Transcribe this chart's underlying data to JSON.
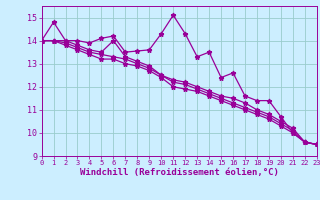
{
  "series": [
    {
      "x": [
        0,
        1,
        2,
        3,
        4,
        5,
        6,
        7,
        8,
        9,
        10,
        11,
        12,
        13,
        14,
        15,
        16,
        17,
        18,
        19,
        20,
        21,
        22,
        23
      ],
      "y": [
        14.0,
        14.8,
        14.0,
        14.0,
        13.9,
        14.1,
        14.2,
        13.5,
        13.55,
        13.6,
        14.3,
        15.1,
        14.3,
        13.3,
        13.5,
        12.4,
        12.6,
        11.6,
        11.4,
        11.4,
        10.7,
        10.0,
        9.6,
        9.5
      ]
    },
    {
      "x": [
        0,
        1,
        2,
        3,
        4,
        5,
        6,
        7,
        8,
        9,
        10,
        11,
        12,
        13,
        14,
        15,
        16,
        17,
        18,
        19,
        20,
        21,
        22,
        23
      ],
      "y": [
        14.0,
        14.0,
        14.0,
        13.8,
        13.6,
        13.5,
        14.0,
        13.3,
        13.1,
        12.9,
        12.5,
        12.3,
        12.2,
        12.0,
        11.8,
        11.6,
        11.5,
        11.3,
        11.0,
        10.8,
        10.5,
        10.2,
        9.6,
        9.5
      ]
    },
    {
      "x": [
        0,
        1,
        2,
        3,
        4,
        5,
        6,
        7,
        8,
        9,
        10,
        11,
        12,
        13,
        14,
        15,
        16,
        17,
        18,
        19,
        20,
        21,
        22,
        23
      ],
      "y": [
        14.0,
        14.0,
        13.9,
        13.7,
        13.5,
        13.4,
        13.3,
        13.2,
        13.0,
        12.8,
        12.5,
        12.2,
        12.1,
        11.9,
        11.7,
        11.5,
        11.3,
        11.1,
        10.9,
        10.7,
        10.4,
        10.1,
        9.6,
        9.5
      ]
    },
    {
      "x": [
        0,
        1,
        2,
        3,
        4,
        5,
        6,
        7,
        8,
        9,
        10,
        11,
        12,
        13,
        14,
        15,
        16,
        17,
        18,
        19,
        20,
        21,
        22,
        23
      ],
      "y": [
        14.0,
        14.0,
        13.8,
        13.6,
        13.4,
        13.2,
        13.2,
        13.0,
        12.9,
        12.7,
        12.4,
        12.0,
        11.9,
        11.8,
        11.6,
        11.4,
        11.2,
        11.0,
        10.8,
        10.6,
        10.3,
        10.0,
        9.6,
        9.5
      ]
    }
  ],
  "line_color": "#990099",
  "marker": "*",
  "markersize": 3.5,
  "linewidth": 0.9,
  "background_color": "#cceeff",
  "grid_color": "#99cccc",
  "xlabel": "Windchill (Refroidissement éolien,°C)",
  "xlim": [
    0,
    23
  ],
  "ylim": [
    9.0,
    15.5
  ],
  "yticks": [
    9,
    10,
    11,
    12,
    13,
    14,
    15
  ],
  "xticks": [
    0,
    1,
    2,
    3,
    4,
    5,
    6,
    7,
    8,
    9,
    10,
    11,
    12,
    13,
    14,
    15,
    16,
    17,
    18,
    19,
    20,
    21,
    22,
    23
  ],
  "xtick_fontsize": 5.0,
  "ytick_fontsize": 6.0,
  "xlabel_fontsize": 6.5
}
